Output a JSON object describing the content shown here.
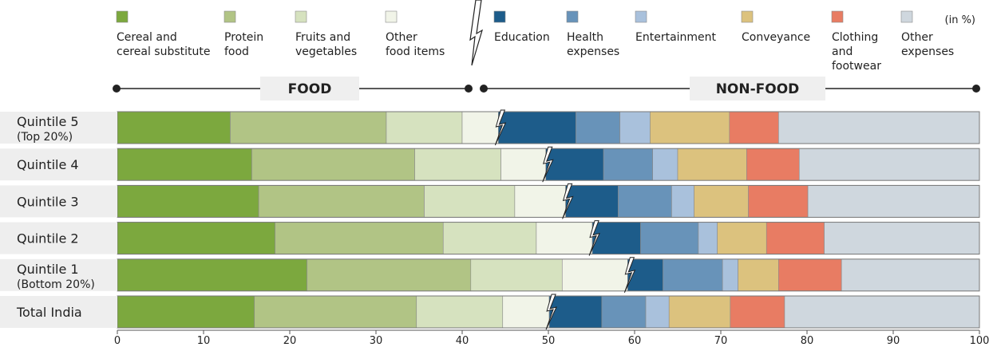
{
  "chart_data": {
    "type": "bar",
    "orientation": "horizontal",
    "stacked": true,
    "unit_label": "(in %)",
    "groups": [
      {
        "label": "FOOD",
        "series": [
          0,
          1,
          2,
          3
        ]
      },
      {
        "label": "NON-FOOD",
        "series": [
          4,
          5,
          6,
          7,
          8,
          9
        ]
      }
    ],
    "series": [
      {
        "name": "Cereal and\ncereal substitute",
        "color": "#7ca83e"
      },
      {
        "name": "Protein\nfood",
        "color": "#b1c485"
      },
      {
        "name": "Fruits and\nvegetables",
        "color": "#d6e2bf"
      },
      {
        "name": "Other\nfood items",
        "color": "#f1f4e8"
      },
      {
        "name": "Education",
        "color": "#1d5c8a"
      },
      {
        "name": "Health\nexpenses",
        "color": "#6893b9"
      },
      {
        "name": "Entertainment",
        "color": "#a9c1dc"
      },
      {
        "name": "Conveyance",
        "color": "#dcc27e"
      },
      {
        "name": "Clothing\nand\nfootwear",
        "color": "#e87c63"
      },
      {
        "name": "Other\nexpenses",
        "color": "#cfd7de"
      }
    ],
    "categories": [
      {
        "label": "Quintile 5",
        "sub": "(Top 20%)",
        "values": [
          13.1,
          18.1,
          8.8,
          4.2,
          9.0,
          5.1,
          3.5,
          9.2,
          5.7,
          23.3
        ]
      },
      {
        "label": "Quintile 4",
        "sub": "",
        "values": [
          15.6,
          18.9,
          10.0,
          5.2,
          6.7,
          5.7,
          2.9,
          8.0,
          6.1,
          20.9
        ]
      },
      {
        "label": "Quintile 3",
        "sub": "",
        "values": [
          16.4,
          19.2,
          10.5,
          5.9,
          6.1,
          6.2,
          2.6,
          6.3,
          6.9,
          19.9
        ]
      },
      {
        "label": "Quintile 2",
        "sub": "",
        "values": [
          18.3,
          19.5,
          10.8,
          6.5,
          5.6,
          6.7,
          2.2,
          5.7,
          6.7,
          18.0
        ]
      },
      {
        "label": "Quintile 1",
        "sub": "(Bottom 20%)",
        "values": [
          22.0,
          19.0,
          10.6,
          7.6,
          4.1,
          6.9,
          1.8,
          4.7,
          7.3,
          16.0
        ]
      },
      {
        "label": "Total India",
        "sub": "",
        "values": [
          15.9,
          18.8,
          10.0,
          5.4,
          6.1,
          5.1,
          2.7,
          7.1,
          6.3,
          22.6
        ]
      }
    ],
    "xlim": [
      0,
      100
    ],
    "xticks": [
      "0",
      "10",
      "20",
      "30",
      "40",
      "50",
      "60",
      "70",
      "80",
      "90",
      "100"
    ],
    "grid": false,
    "legend": "top"
  }
}
